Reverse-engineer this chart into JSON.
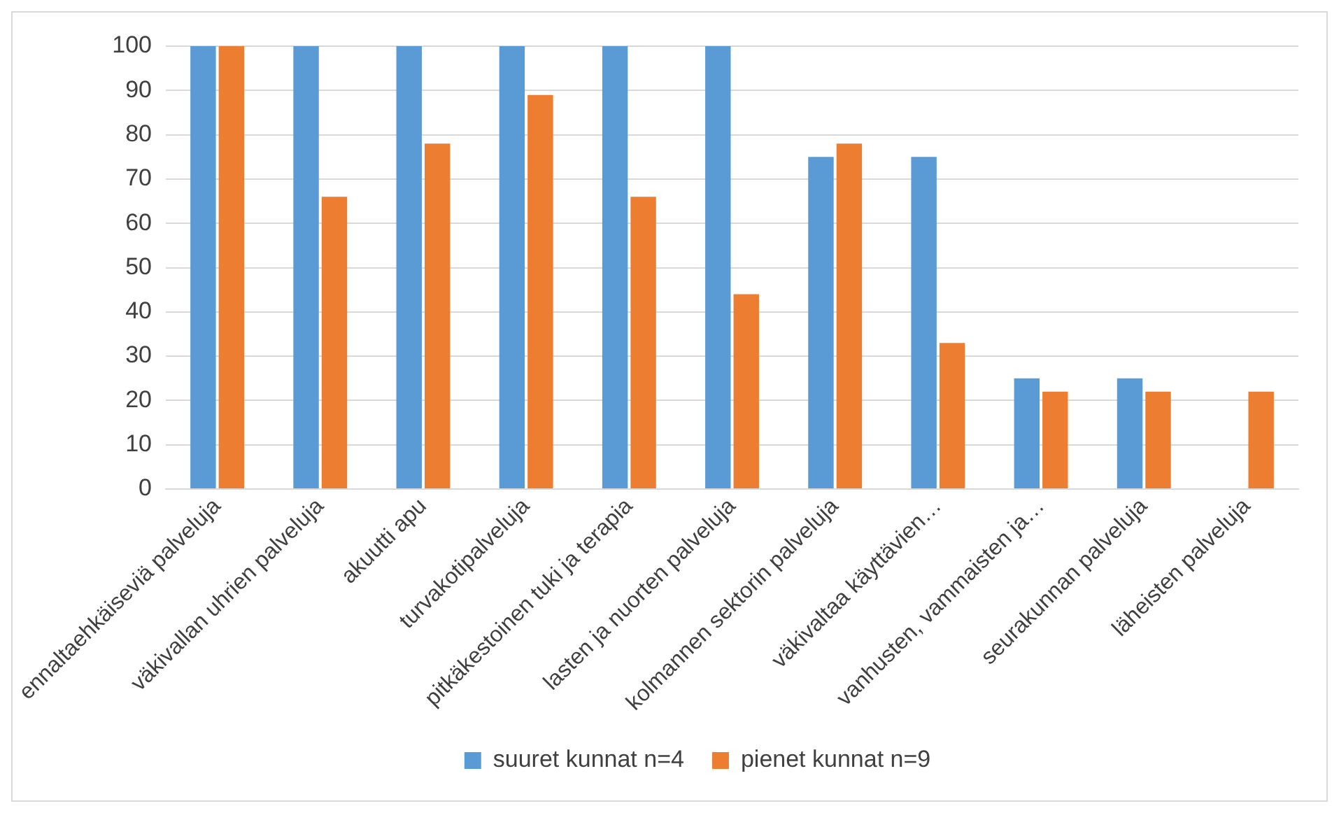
{
  "chart_data": {
    "type": "bar",
    "categories": [
      "ennaltaehkäiseviä palveluja",
      "väkivallan uhrien palveluja",
      "akuutti apu",
      "turvakotipalveluja",
      "pitkäkestoinen tuki ja terapia",
      "lasten ja nuorten palveluja",
      "kolmannen sektorin palveluja",
      "väkivaltaa käyttävien…",
      "vanhusten, vammaisten ja…",
      "seurakunnan palveluja",
      "läheisten palveluja"
    ],
    "series": [
      {
        "name": "suuret kunnat n=4",
        "color": "#5b9bd5",
        "values": [
          100,
          100,
          100,
          100,
          100,
          100,
          75,
          75,
          25,
          25,
          0
        ]
      },
      {
        "name": "pienet kunnat n=9",
        "color": "#ed7d31",
        "values": [
          100,
          66,
          78,
          89,
          66,
          44,
          78,
          33,
          22,
          22,
          22
        ]
      }
    ],
    "ylim": [
      0,
      100
    ],
    "yticks": [
      0,
      10,
      20,
      30,
      40,
      50,
      60,
      70,
      80,
      90,
      100
    ],
    "grid": "y",
    "legend": "bottom"
  }
}
